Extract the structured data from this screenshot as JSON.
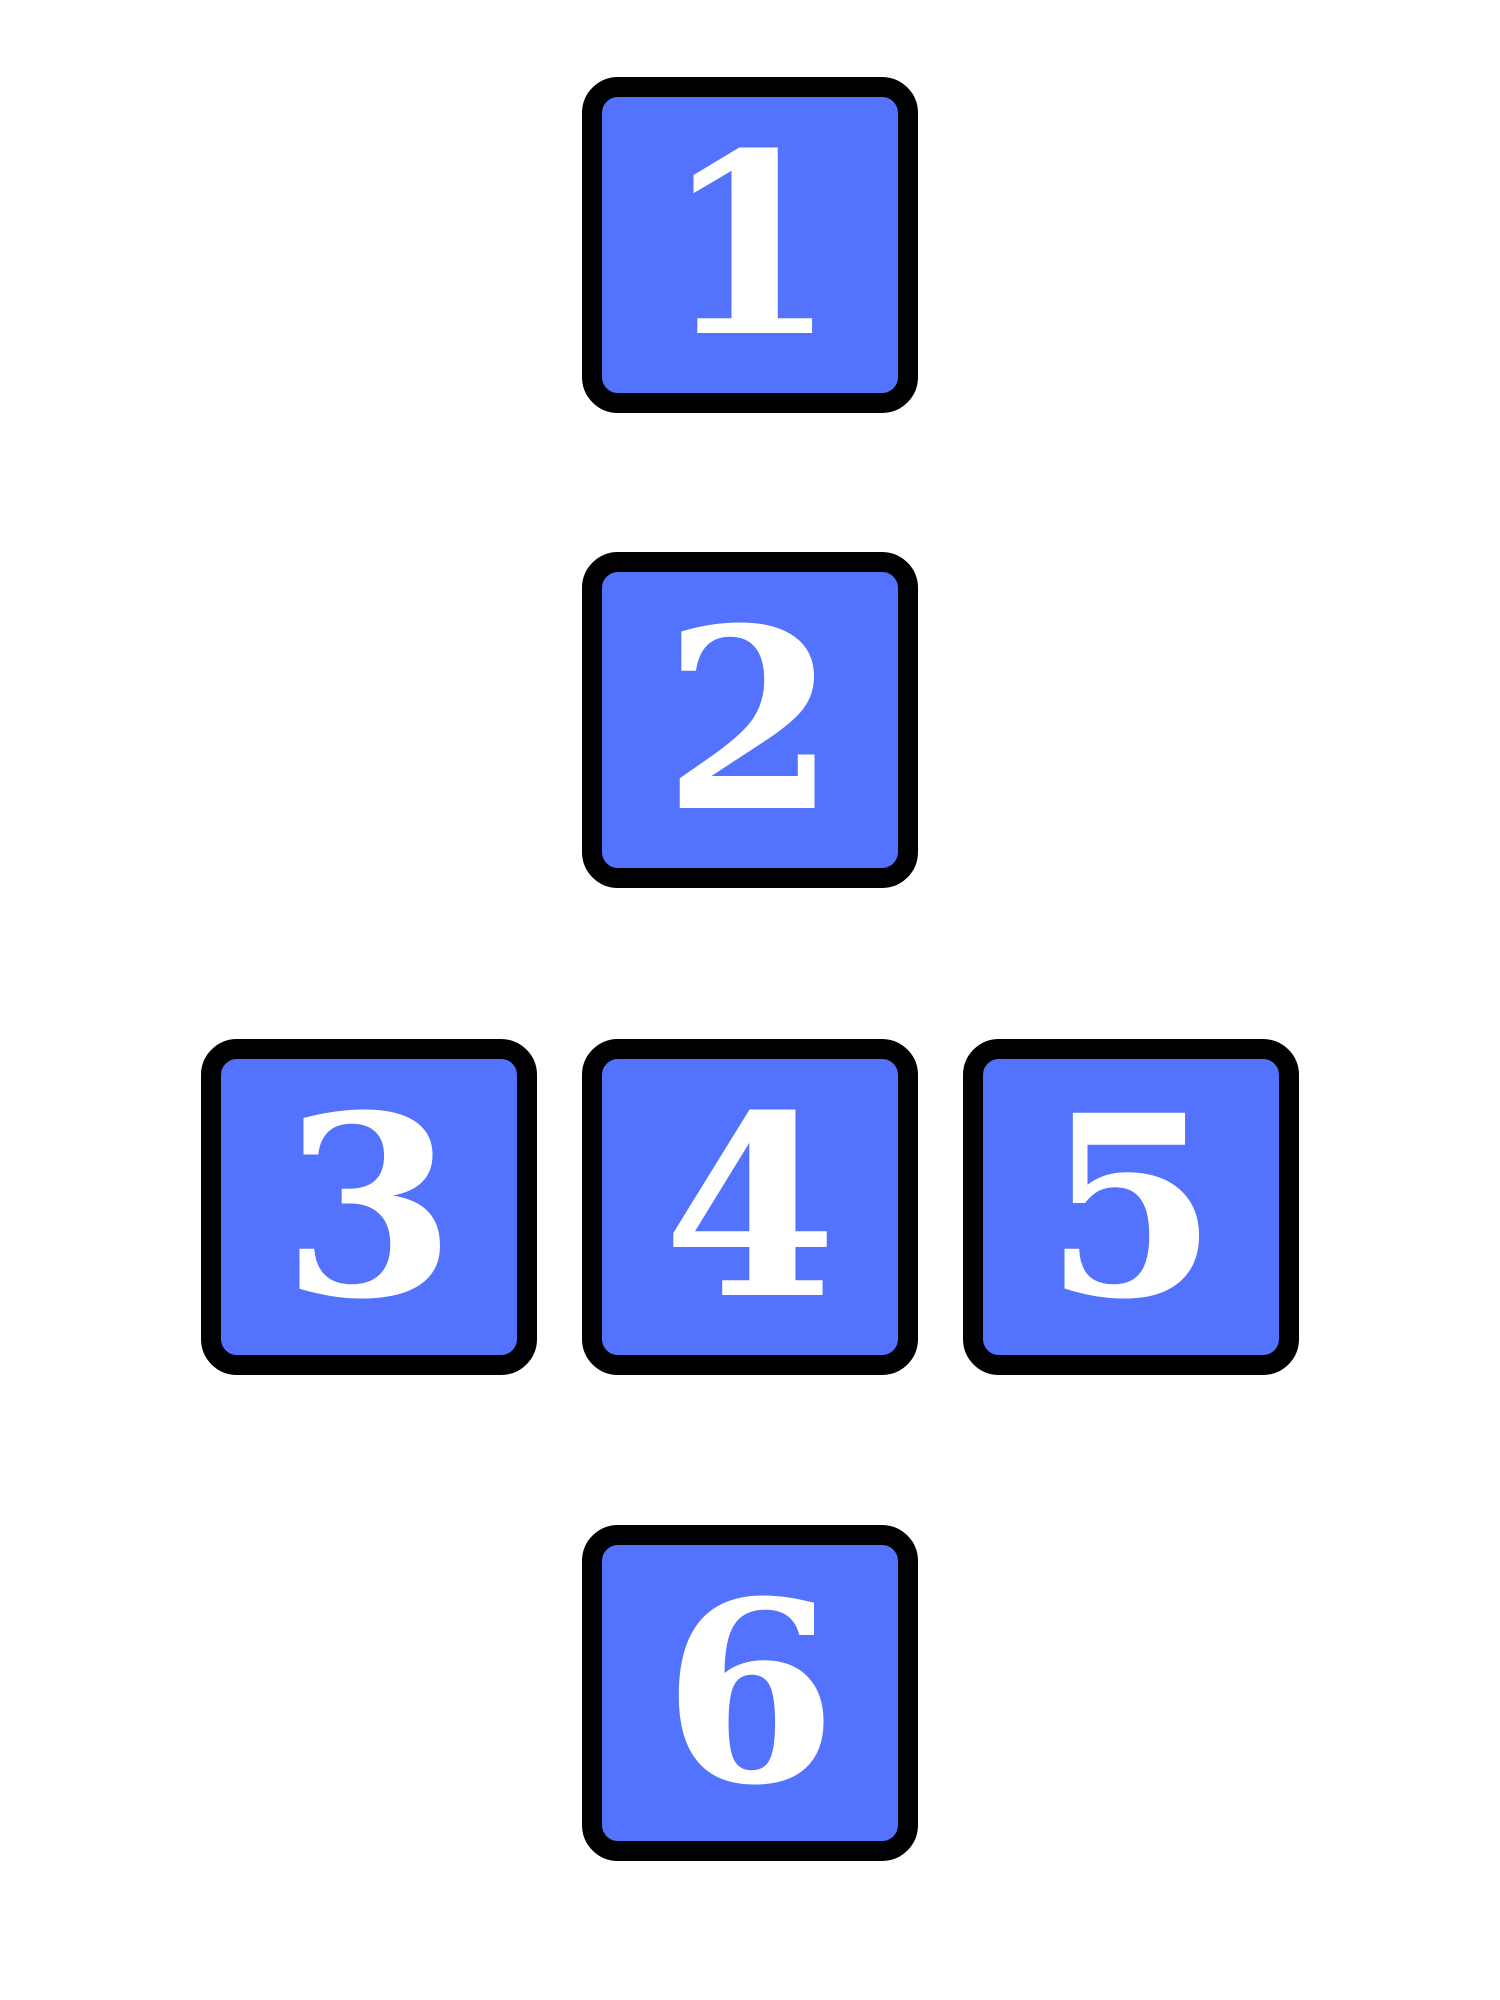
{
  "colors": {
    "tile_fill": "#5373ff",
    "tile_border": "#000000",
    "digit": "#ffffff",
    "background": "#ffffff"
  },
  "tiles": [
    {
      "label": "1"
    },
    {
      "label": "2"
    },
    {
      "label": "3"
    },
    {
      "label": "4"
    },
    {
      "label": "5"
    },
    {
      "label": "6"
    }
  ]
}
